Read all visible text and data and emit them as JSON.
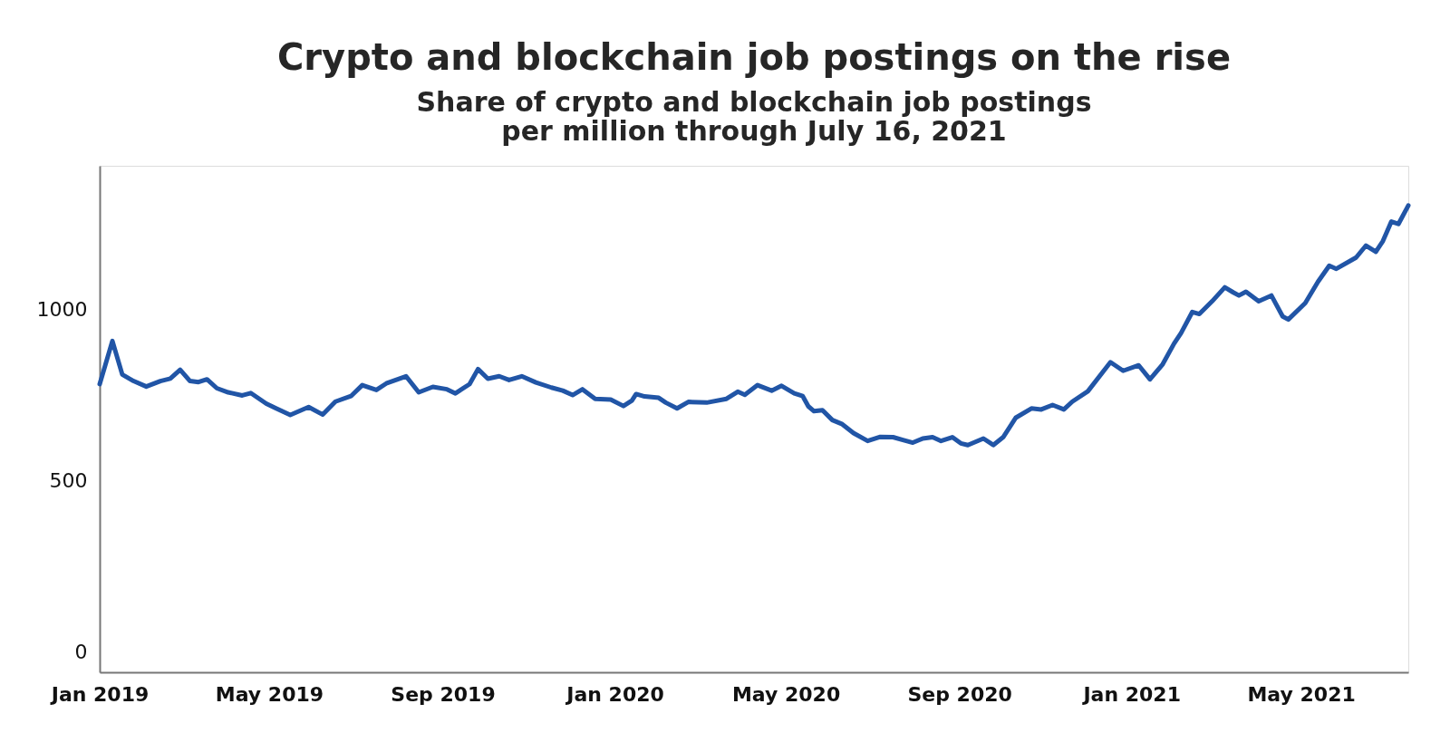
{
  "chart_data": {
    "type": "line",
    "title": "Crypto and blockchain job postings on the rise",
    "subtitle": "Share of crypto and blockchain job postings\nper million through July 16, 2021",
    "x": [
      "2019-01-01",
      "2019-01-10",
      "2019-01-17",
      "2019-01-25",
      "2019-02-03",
      "2019-02-13",
      "2019-02-20",
      "2019-02-27",
      "2019-03-06",
      "2019-03-12",
      "2019-03-18",
      "2019-03-25",
      "2019-04-02",
      "2019-04-12",
      "2019-04-18",
      "2019-04-29",
      "2019-05-06",
      "2019-05-16",
      "2019-05-29",
      "2019-06-08",
      "2019-06-17",
      "2019-06-28",
      "2019-07-06",
      "2019-07-16",
      "2019-07-23",
      "2019-08-06",
      "2019-08-15",
      "2019-08-25",
      "2019-09-04",
      "2019-09-10",
      "2019-09-20",
      "2019-09-26",
      "2019-10-03",
      "2019-10-11",
      "2019-10-18",
      "2019-10-27",
      "2019-11-06",
      "2019-11-17",
      "2019-11-25",
      "2019-12-02",
      "2019-12-09",
      "2019-12-18",
      "2019-12-29",
      "2020-01-07",
      "2020-01-13",
      "2020-01-16",
      "2020-01-22",
      "2020-02-01",
      "2020-02-06",
      "2020-02-14",
      "2020-02-22",
      "2020-03-06",
      "2020-03-20",
      "2020-03-28",
      "2020-04-02",
      "2020-04-11",
      "2020-04-21",
      "2020-04-28",
      "2020-05-07",
      "2020-05-13",
      "2020-05-17",
      "2020-05-21",
      "2020-05-27",
      "2020-06-03",
      "2020-06-10",
      "2020-06-18",
      "2020-06-28",
      "2020-07-07",
      "2020-07-16",
      "2020-07-23",
      "2020-07-30",
      "2020-08-06",
      "2020-08-13",
      "2020-08-19",
      "2020-08-27",
      "2020-09-02",
      "2020-09-07",
      "2020-09-18",
      "2020-09-25",
      "2020-10-02",
      "2020-10-11",
      "2020-10-22",
      "2020-10-29",
      "2020-11-06",
      "2020-11-14",
      "2020-11-20",
      "2020-12-01",
      "2020-12-17",
      "2020-12-26",
      "2021-01-06",
      "2021-01-14",
      "2021-01-23",
      "2021-01-31",
      "2021-02-05",
      "2021-02-13",
      "2021-02-18",
      "2021-02-27",
      "2021-03-08",
      "2021-03-14",
      "2021-03-18",
      "2021-03-23",
      "2021-04-01",
      "2021-04-10",
      "2021-04-18",
      "2021-04-22",
      "2021-05-04",
      "2021-05-13",
      "2021-05-21",
      "2021-05-26",
      "2021-06-09",
      "2021-06-16",
      "2021-06-23",
      "2021-06-28",
      "2021-07-04",
      "2021-07-09",
      "2021-07-16"
    ],
    "series": [
      {
        "color": "#2155a6",
        "values": [
          782,
          908,
          810,
          791,
          775,
          791,
          798,
          824,
          791,
          788,
          796,
          770,
          758,
          749,
          756,
          725,
          711,
          692,
          715,
          693,
          731,
          747,
          779,
          765,
          784,
          805,
          758,
          774,
          767,
          755,
          782,
          826,
          798,
          805,
          794,
          805,
          787,
          772,
          763,
          750,
          767,
          739,
          737,
          718,
          734,
          753,
          746,
          742,
          728,
          711,
          730,
          728,
          739,
          760,
          751,
          779,
          763,
          777,
          755,
          747,
          717,
          703,
          706,
          677,
          665,
          639,
          616,
          628,
          627,
          619,
          611,
          623,
          627,
          616,
          627,
          609,
          604,
          623,
          604,
          627,
          684,
          711,
          708,
          721,
          708,
          731,
          761,
          846,
          821,
          837,
          796,
          840,
          900,
          931,
          993,
          987,
          1024,
          1065,
          1050,
          1041,
          1052,
          1024,
          1041,
          980,
          971,
          1019,
          1081,
          1128,
          1119,
          1152,
          1187,
          1169,
          1200,
          1257,
          1250,
          1304
        ]
      }
    ],
    "xlim": [
      "2019-01-01",
      "2021-07-16"
    ],
    "xticks": [
      {
        "value": "2019-01-01",
        "label": "Jan 2019"
      },
      {
        "value": "2019-05-01",
        "label": "May 2019"
      },
      {
        "value": "2019-09-01",
        "label": "Sep 2019"
      },
      {
        "value": "2020-01-01",
        "label": "Jan 2020"
      },
      {
        "value": "2020-05-01",
        "label": "May 2020"
      },
      {
        "value": "2020-09-01",
        "label": "Sep 2020"
      },
      {
        "value": "2021-01-01",
        "label": "Jan 2021"
      },
      {
        "value": "2021-05-01",
        "label": "May 2021"
      }
    ],
    "ylim": [
      -60,
      1420
    ],
    "yticks": [
      0,
      500,
      1000
    ],
    "grid": false,
    "legend": false,
    "marker": "none",
    "line_style": "solid"
  }
}
